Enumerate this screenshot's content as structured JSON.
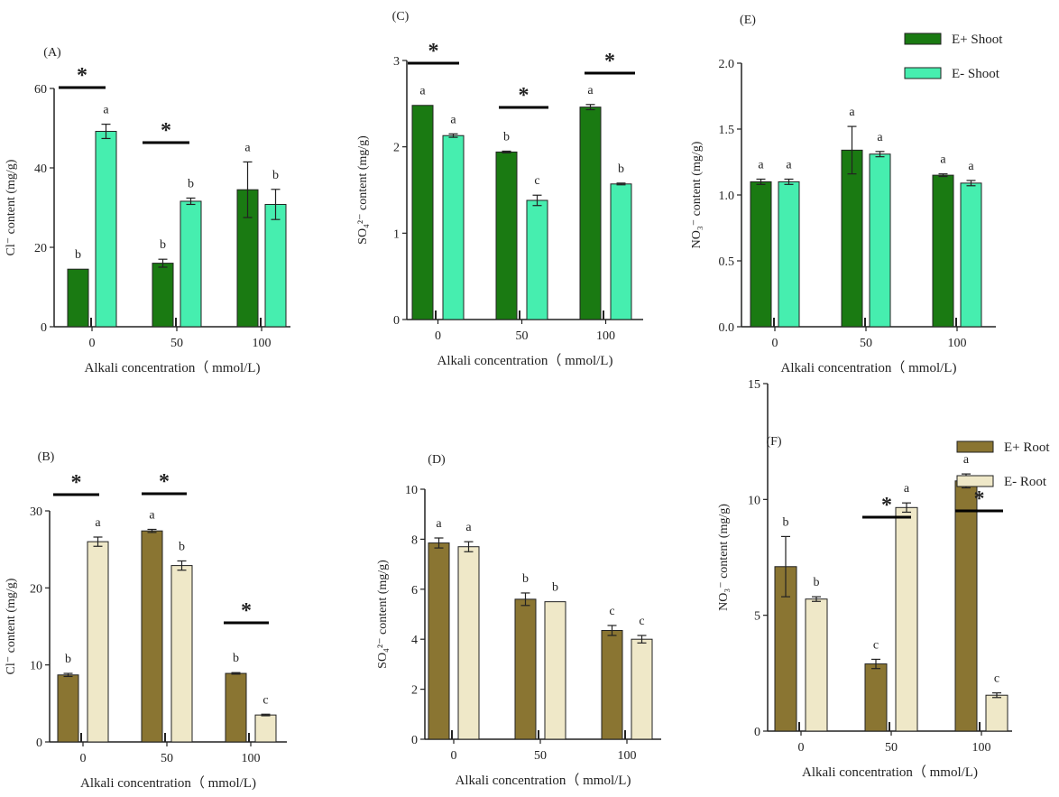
{
  "colors": {
    "shoot_eplus": "#1a7a12",
    "shoot_eminus": "#46eeaf",
    "root_eplus": "#8a7532",
    "root_eminus": "#efe8c8",
    "axis": "#222222"
  },
  "legends": {
    "shoot": {
      "series": [
        "E+ Shoot",
        "E- Shoot"
      ]
    },
    "root": {
      "series": [
        "E+ Root",
        "E- Root"
      ]
    }
  },
  "chart_data": [
    {
      "id": "A",
      "panel_label": "(A)",
      "type": "bar",
      "categories": [
        "0",
        "50",
        "100"
      ],
      "ylim": [
        0,
        60
      ],
      "yticks": [
        "0",
        "20",
        "40",
        "60"
      ],
      "ylabel": "Cl⁻ content (mg/g)",
      "xlabel": "Alkali concentration（ mmol/L)",
      "series": [
        {
          "name": "E+ Shoot",
          "values": [
            14.5,
            16.0,
            34.5
          ],
          "errors": [
            0,
            1.0,
            7.0
          ],
          "letters": [
            "b",
            "b",
            "a"
          ]
        },
        {
          "name": "E- Shoot",
          "values": [
            49.2,
            31.6,
            30.8
          ],
          "errors": [
            1.8,
            0.8,
            3.8
          ],
          "letters": [
            "a",
            "b",
            "b"
          ]
        }
      ],
      "significance": [
        "*",
        "*",
        ""
      ]
    },
    {
      "id": "C",
      "panel_label": "(C)",
      "type": "bar",
      "categories": [
        "0",
        "50",
        "100"
      ],
      "ylim": [
        0,
        3
      ],
      "yticks": [
        "0",
        "1",
        "2",
        "3"
      ],
      "ylabel": "SO₄²⁻ content (mg/g)",
      "xlabel": "Alkali concentration（ mmol/L)",
      "series": [
        {
          "name": "E+ Shoot",
          "values": [
            2.48,
            1.94,
            2.46
          ],
          "errors": [
            0,
            0.01,
            0.03
          ],
          "letters": [
            "a",
            "b",
            "a"
          ]
        },
        {
          "name": "E- Shoot",
          "values": [
            2.13,
            1.38,
            1.57
          ],
          "errors": [
            0.02,
            0.06,
            0.01
          ],
          "letters": [
            "a",
            "c",
            "b"
          ]
        }
      ],
      "significance": [
        "*",
        "*",
        "*"
      ]
    },
    {
      "id": "E",
      "panel_label": "(E)",
      "type": "bar",
      "categories": [
        "0",
        "50",
        "100"
      ],
      "ylim": [
        0,
        2
      ],
      "yticks": [
        "0.0",
        "0.5",
        "1.0",
        "1.5",
        "2.0"
      ],
      "ylabel": "NO₃⁻ content (mg/g)",
      "xlabel": "Alkali concentration（ mmol/L)",
      "series": [
        {
          "name": "E+ Shoot",
          "values": [
            1.1,
            1.34,
            1.15
          ],
          "errors": [
            0.02,
            0.18,
            0.01
          ],
          "letters": [
            "a",
            "a",
            "a"
          ]
        },
        {
          "name": "E- Shoot",
          "values": [
            1.1,
            1.31,
            1.09
          ],
          "errors": [
            0.02,
            0.02,
            0.02
          ],
          "letters": [
            "a",
            "a",
            "a"
          ]
        }
      ],
      "significance": [
        "",
        "",
        ""
      ]
    },
    {
      "id": "B",
      "panel_label": "(B)",
      "type": "bar",
      "categories": [
        "0",
        "50",
        "100"
      ],
      "ylim": [
        0,
        30
      ],
      "yticks": [
        "0",
        "10",
        "20",
        "30"
      ],
      "ylabel": "Cl⁻ content (mg/g)",
      "xlabel": "Alkali concentration（ mmol/L)",
      "series": [
        {
          "name": "E+ Root",
          "values": [
            8.7,
            27.4,
            8.9
          ],
          "errors": [
            0.2,
            0.2,
            0.1
          ],
          "letters": [
            "b",
            "a",
            "b"
          ]
        },
        {
          "name": "E- Root",
          "values": [
            26.0,
            22.9,
            3.5
          ],
          "errors": [
            0.6,
            0.6,
            0.1
          ],
          "letters": [
            "a",
            "b",
            "c"
          ]
        }
      ],
      "significance": [
        "*",
        "*",
        "*"
      ]
    },
    {
      "id": "D",
      "panel_label": "(D)",
      "type": "bar",
      "categories": [
        "0",
        "50",
        "100"
      ],
      "ylim": [
        0,
        10
      ],
      "yticks": [
        "0",
        "2",
        "4",
        "6",
        "8",
        "10"
      ],
      "ylabel": "SO₄²⁻ content (mg/g)",
      "xlabel": "Alkali concentration（ mmol/L)",
      "series": [
        {
          "name": "E+ Root",
          "values": [
            7.85,
            5.6,
            4.35
          ],
          "errors": [
            0.2,
            0.25,
            0.2
          ],
          "letters": [
            "a",
            "b",
            "c"
          ]
        },
        {
          "name": "E- Root",
          "values": [
            7.7,
            5.5,
            4.0
          ],
          "errors": [
            0.2,
            0,
            0.15
          ],
          "letters": [
            "a",
            "b",
            "c"
          ]
        }
      ],
      "significance": [
        "",
        "",
        ""
      ]
    },
    {
      "id": "F",
      "panel_label": "(F)",
      "type": "bar",
      "categories": [
        "0",
        "50",
        "100"
      ],
      "ylim": [
        0,
        15
      ],
      "yticks": [
        "0",
        "5",
        "10",
        "15"
      ],
      "ylabel": "NO₃⁻ content (mg/g)",
      "xlabel": "Alkali concentration（ mmol/L)",
      "series": [
        {
          "name": "E+ Root",
          "values": [
            7.1,
            2.9,
            10.8
          ],
          "errors": [
            1.3,
            0.2,
            0.3
          ],
          "letters": [
            "b",
            "c",
            "a"
          ]
        },
        {
          "name": "E- Root",
          "values": [
            5.7,
            9.65,
            1.55
          ],
          "errors": [
            0.1,
            0.2,
            0.1
          ],
          "letters": [
            "b",
            "a",
            "c"
          ]
        }
      ],
      "significance": [
        "",
        "*",
        "*"
      ]
    }
  ]
}
